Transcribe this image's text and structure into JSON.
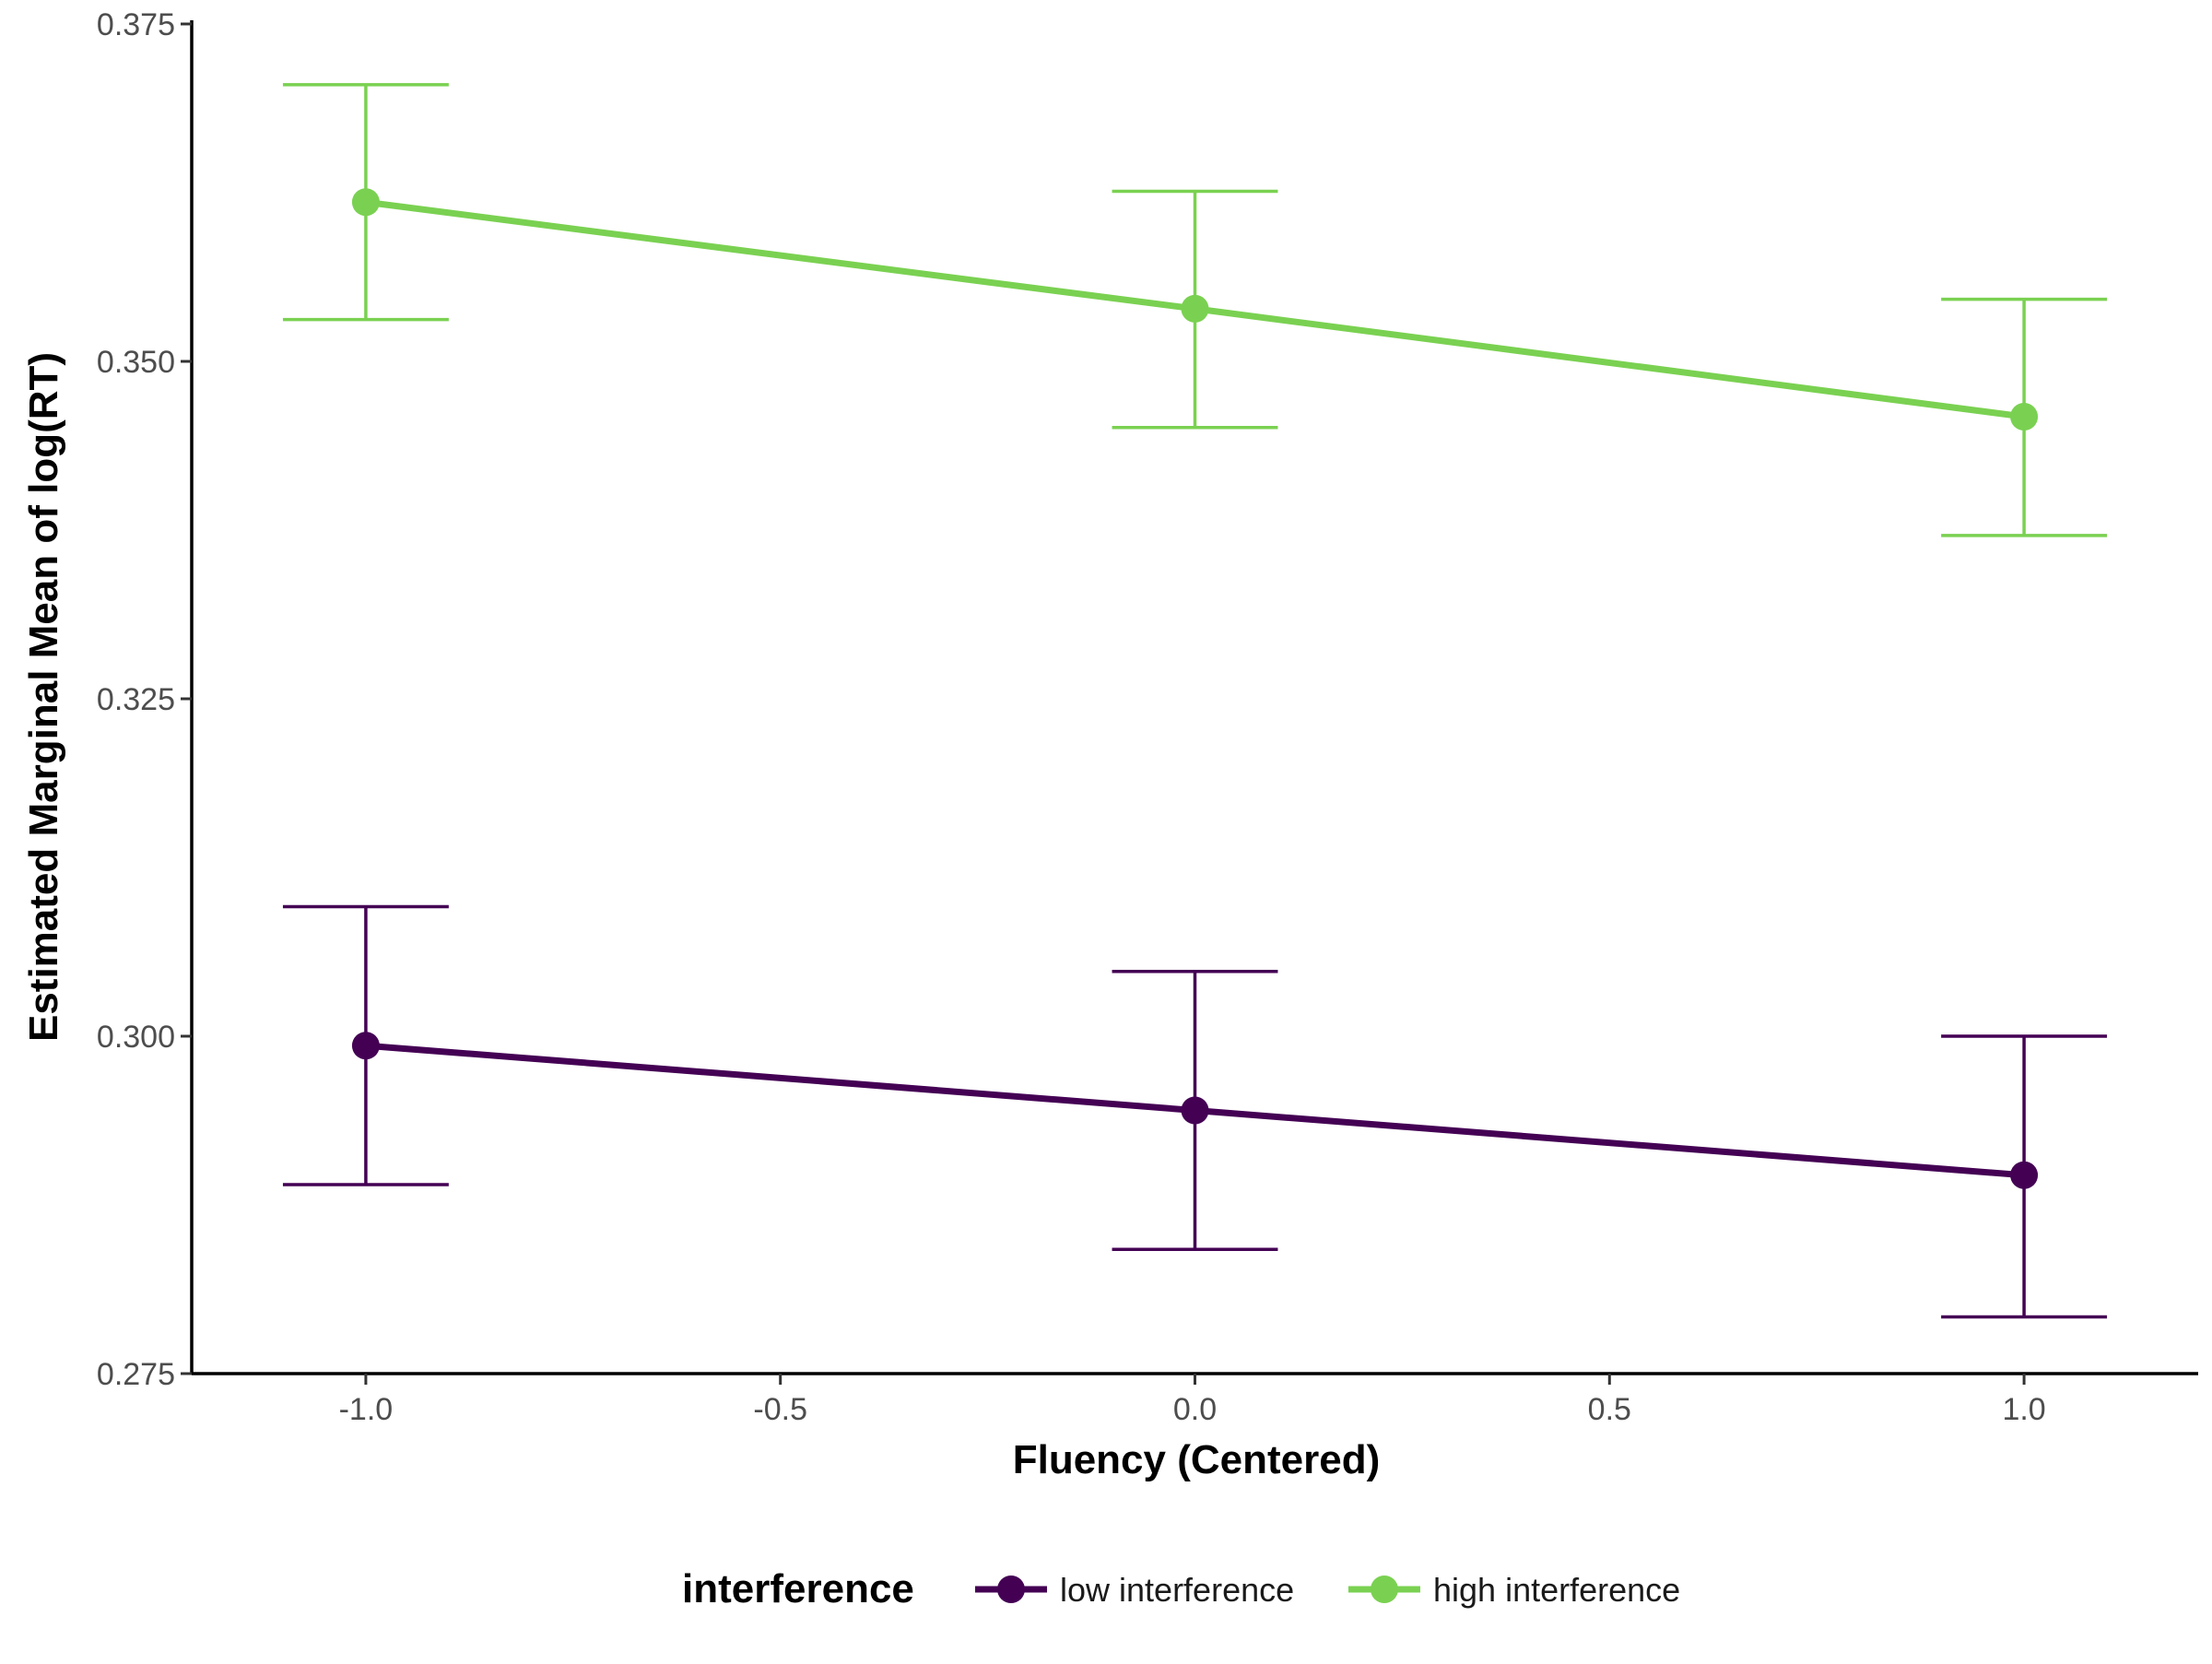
{
  "chart_data": {
    "type": "line",
    "xlabel": "Fluency (Centered)",
    "ylabel": "Estimated Marginal Mean of log(RT)",
    "xlim": [
      -1.21,
      1.21
    ],
    "ylim": [
      0.275,
      0.375
    ],
    "x_ticks": [
      -1.0,
      -0.5,
      0.0,
      0.5,
      1.0
    ],
    "x_tick_labels": [
      "-1.0",
      "-0.5",
      "0.0",
      "0.5",
      "1.0"
    ],
    "y_ticks": [
      0.275,
      0.3,
      0.325,
      0.35,
      0.375
    ],
    "y_tick_labels": [
      "0.275",
      "0.300",
      "0.325",
      "0.350",
      "0.375"
    ],
    "grid": false,
    "legend": {
      "title": "interference",
      "position": "bottom"
    },
    "series": [
      {
        "name": "low interference",
        "color": "#440154",
        "x": [
          -1.0,
          0.0,
          1.0
        ],
        "y": [
          0.2993,
          0.2945,
          0.2897
        ],
        "lower": [
          0.289,
          0.2842,
          0.2792
        ],
        "upper": [
          0.3096,
          0.3048,
          0.3
        ]
      },
      {
        "name": "high interference",
        "color": "#7AD151",
        "x": [
          -1.0,
          0.0,
          1.0
        ],
        "y": [
          0.3618,
          0.3539,
          0.3459
        ],
        "lower": [
          0.3531,
          0.3451,
          0.3371
        ],
        "upper": [
          0.3705,
          0.3626,
          0.3546
        ]
      }
    ]
  }
}
